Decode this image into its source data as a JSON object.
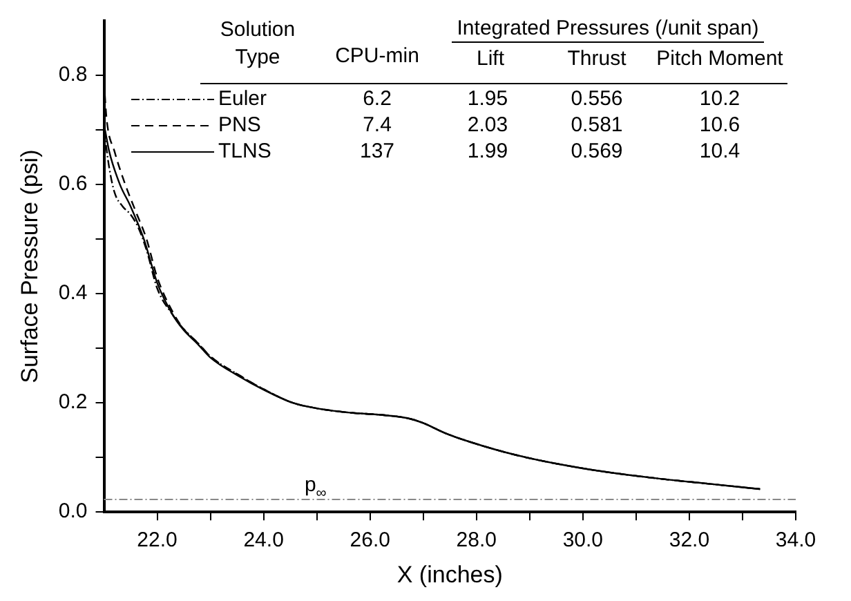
{
  "chart_data": {
    "type": "line",
    "xlabel": "X (inches)",
    "ylabel": "Surface Pressure (psi)",
    "xlim": [
      21,
      34
    ],
    "xticks": [
      {
        "value": 22,
        "label": "22.0"
      },
      {
        "value": 23,
        "label": null
      },
      {
        "value": 24,
        "label": "24.0"
      },
      {
        "value": 25,
        "label": null
      },
      {
        "value": 26,
        "label": "26.0"
      },
      {
        "value": 27,
        "label": null
      },
      {
        "value": 28,
        "label": "28.0"
      },
      {
        "value": 29,
        "label": null
      },
      {
        "value": 30,
        "label": "30.0"
      },
      {
        "value": 31,
        "label": null
      },
      {
        "value": 32,
        "label": "32.0"
      },
      {
        "value": 33,
        "label": null
      },
      {
        "value": 34,
        "label": "34.0"
      }
    ],
    "ylim": [
      0,
      0.9
    ],
    "yticks": [
      {
        "value": 0,
        "label": "0.0"
      },
      {
        "value": 0.1,
        "label": null
      },
      {
        "value": 0.2,
        "label": "0.2"
      },
      {
        "value": 0.3,
        "label": null
      },
      {
        "value": 0.4,
        "label": "0.4"
      },
      {
        "value": 0.5,
        "label": null
      },
      {
        "value": 0.6,
        "label": "0.6"
      },
      {
        "value": 0.7,
        "label": null
      },
      {
        "value": 0.8,
        "label": "0.8"
      }
    ],
    "legend": "top left",
    "marker": "none",
    "ref_lines": [
      {
        "axis": "y",
        "value": 0.023,
        "label": "p$_{∞}$",
        "color": "#888888",
        "line_style": "dotted"
      }
    ],
    "annotations": [
      "Solution Type",
      "CPU-min",
      "Integrated Pressures (/unit span)",
      "Lift",
      "Thrust",
      "Pitch Moment",
      "6.2",
      "1.95",
      "0.556",
      "10.2",
      "7.4",
      "2.03",
      "0.581",
      "10.6",
      "137",
      "1.99",
      "0.569",
      "10.4"
    ],
    "series": [
      {
        "name": "Euler",
        "color": "#000000",
        "line_style": "dotted",
        "x": [
          21.0,
          21.1,
          21.2,
          21.35,
          21.5,
          21.65,
          21.8,
          22.0,
          22.3,
          22.5,
          22.76,
          23.0,
          23.55,
          24.0,
          24.55,
          25.0,
          25.62,
          26.2,
          26.7,
          27.0,
          27.4,
          27.86,
          28.76,
          30.0,
          31.27,
          32.34,
          33.33
        ],
        "values": [
          0.7,
          0.63,
          0.585,
          0.56,
          0.545,
          0.52,
          0.48,
          0.41,
          0.36,
          0.335,
          0.31,
          0.285,
          0.25,
          0.225,
          0.2,
          0.19,
          0.182,
          0.178,
          0.172,
          0.163,
          0.145,
          0.129,
          0.104,
          0.08,
          0.063,
          0.052,
          0.042
        ]
      },
      {
        "name": "PNS",
        "color": "#000000",
        "line_style": "dashed",
        "x": [
          21.0,
          21.05,
          21.2,
          21.4,
          21.6,
          21.8,
          22.0,
          22.3,
          22.5,
          22.76,
          23.0,
          23.55,
          24.0,
          24.55,
          25.0,
          25.62,
          26.2,
          26.7,
          27.0,
          27.4,
          27.86,
          28.76,
          30.0,
          31.27,
          32.34,
          33.33
        ],
        "values": [
          0.79,
          0.72,
          0.66,
          0.6,
          0.55,
          0.5,
          0.43,
          0.365,
          0.335,
          0.31,
          0.285,
          0.25,
          0.225,
          0.2,
          0.19,
          0.182,
          0.178,
          0.172,
          0.163,
          0.145,
          0.129,
          0.104,
          0.08,
          0.063,
          0.052,
          0.042
        ]
      },
      {
        "name": "TLNS",
        "color": "#000000",
        "line_style": "solid",
        "x": [
          21.02,
          21.1,
          21.3,
          21.5,
          21.75,
          22.0,
          22.3,
          22.5,
          22.76,
          23.0,
          23.55,
          24.0,
          24.55,
          25.0,
          25.62,
          26.2,
          26.7,
          27.0,
          27.4,
          27.86,
          28.76,
          30.0,
          31.27,
          32.34,
          33.33
        ],
        "values": [
          0.7,
          0.66,
          0.6,
          0.56,
          0.5,
          0.42,
          0.36,
          0.333,
          0.308,
          0.283,
          0.248,
          0.224,
          0.2,
          0.19,
          0.182,
          0.178,
          0.172,
          0.163,
          0.145,
          0.129,
          0.104,
          0.08,
          0.063,
          0.052,
          0.042
        ]
      }
    ]
  }
}
